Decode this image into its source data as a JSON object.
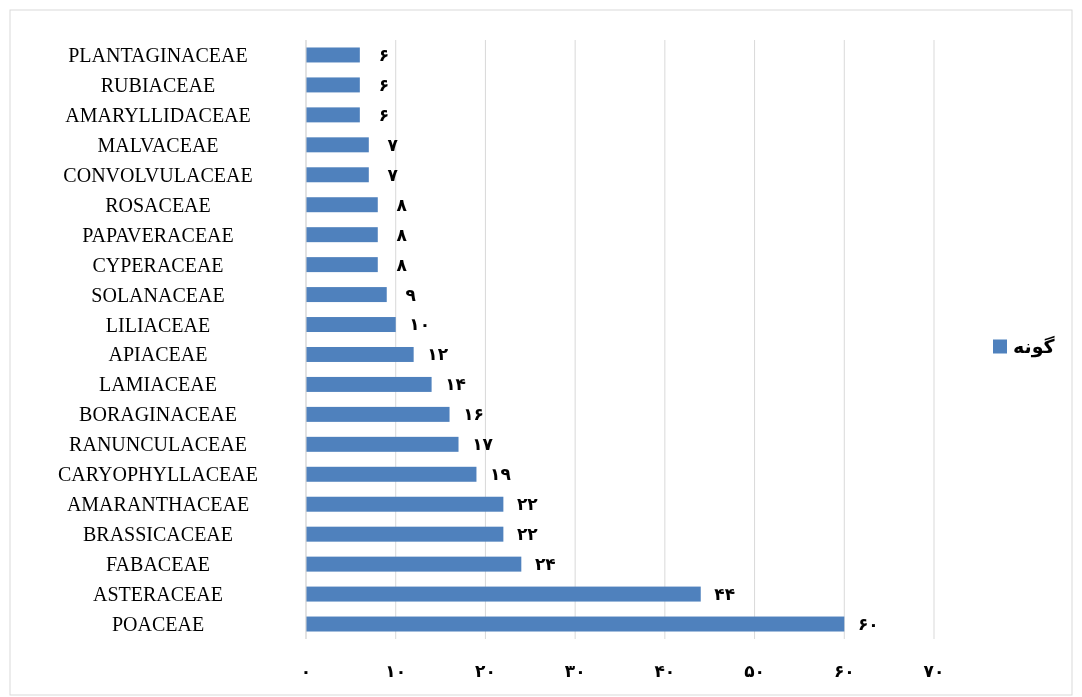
{
  "chart_data": {
    "type": "bar",
    "orientation": "horizontal",
    "categories": [
      "PLANTAGINACEAE",
      "RUBIACEAE",
      "AMARYLLIDACEAE",
      "MALVACEAE",
      "CONVOLVULACEAE",
      "ROSACEAE",
      "PAPAVERACEAE",
      "CYPERACEAE",
      "SOLANACEAE",
      "LILIACEAE",
      "APIACEAE",
      "LAMIACEAE",
      "BORAGINACEAE",
      "RANUNCULACEAE",
      "CARYOPHYLLACEAE",
      "AMARANTHACEAE",
      "BRASSICACEAE",
      "FABACEAE",
      "ASTERACEAE",
      "POACEAE"
    ],
    "series": [
      {
        "name": "گونه",
        "color": "#4f81bd",
        "values": [
          6,
          6,
          6,
          7,
          7,
          8,
          8,
          8,
          9,
          10,
          12,
          14,
          16,
          17,
          19,
          22,
          22,
          24,
          44,
          60
        ],
        "value_labels": [
          "۶",
          "۶",
          "۶",
          "۷",
          "۷",
          "۸",
          "۸",
          "۸",
          "۹",
          "۱۰",
          "۱۲",
          "۱۴",
          "۱۶",
          "۱۷",
          "۱۹",
          "۲۲",
          "۲۲",
          "۲۴",
          "۴۴",
          "۶۰"
        ]
      }
    ],
    "xlim": [
      0,
      70
    ],
    "xticks": [
      {
        "value": 0,
        "label": "۰"
      },
      {
        "value": 10,
        "label": "۱۰"
      },
      {
        "value": 20,
        "label": "۲۰"
      },
      {
        "value": 30,
        "label": "۳۰"
      },
      {
        "value": 40,
        "label": "۴۰"
      },
      {
        "value": 50,
        "label": "۵۰"
      },
      {
        "value": 60,
        "label": "۶۰"
      },
      {
        "value": 70,
        "label": "۷۰"
      }
    ],
    "grid": "x",
    "legend": "right"
  }
}
